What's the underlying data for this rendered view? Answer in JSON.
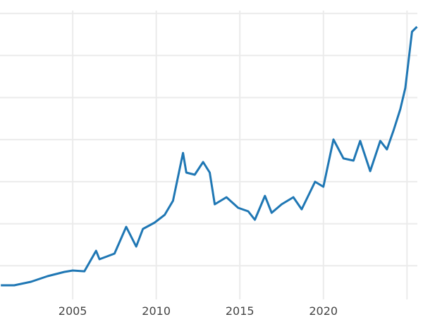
{
  "chart_data": {
    "type": "line",
    "title": "",
    "xlabel": "",
    "ylabel": "",
    "xlim": [
      2000.65,
      2025.65
    ],
    "ylim": [
      0,
      3600
    ],
    "x_ticks": [
      2005,
      2010,
      2015,
      2020,
      2025
    ],
    "x_tick_labels": [
      "2005",
      "2010",
      "2015",
      "2020",
      ""
    ],
    "y_gridlines": [
      500,
      1000,
      1500,
      2000,
      2500,
      3000,
      3500
    ],
    "grid": true,
    "line_color": "#1f77b4",
    "grid_color": "#ebebeb",
    "series": [
      {
        "x": [
          2000.7,
          2001.5,
          2002.5,
          2003.5,
          2004.5,
          2005.0,
          2005.7,
          2006.4,
          2006.6,
          2007.5,
          2008.2,
          2008.8,
          2009.2,
          2009.9,
          2010.5,
          2011.0,
          2011.6,
          2011.8,
          2012.3,
          2012.8,
          2013.2,
          2013.5,
          2014.2,
          2014.9,
          2015.5,
          2015.9,
          2016.5,
          2016.9,
          2017.5,
          2018.2,
          2018.7,
          2019.5,
          2020.0,
          2020.6,
          2021.2,
          2021.8,
          2022.2,
          2022.8,
          2023.4,
          2023.8,
          2024.2,
          2024.6,
          2024.9,
          2025.3,
          2025.6
        ],
        "y": [
          268,
          268,
          310,
          377,
          427,
          444,
          435,
          678,
          578,
          645,
          963,
          729,
          938,
          1013,
          1105,
          1273,
          1842,
          1608,
          1583,
          1734,
          1608,
          1231,
          1315,
          1189,
          1147,
          1047,
          1332,
          1130,
          1231,
          1315,
          1172,
          1499,
          1440,
          2002,
          1776,
          1750,
          1985,
          1625,
          1985,
          1884,
          2111,
          2362,
          2613,
          3283,
          3342
        ]
      }
    ]
  }
}
